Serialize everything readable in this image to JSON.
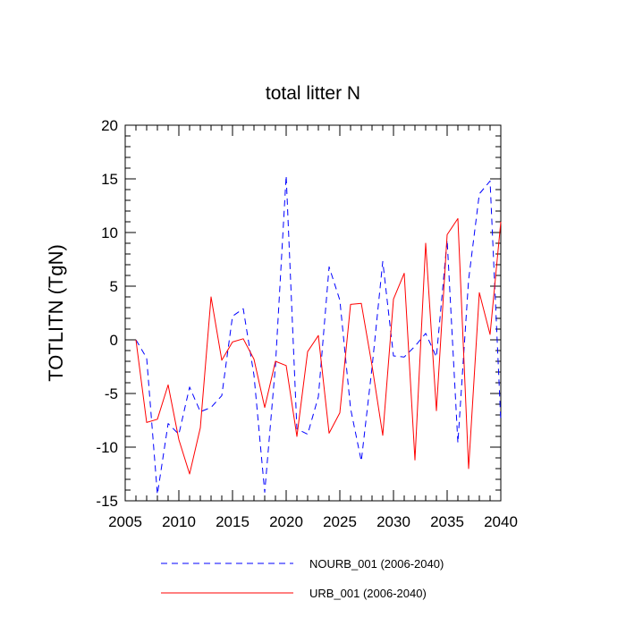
{
  "chart_data": {
    "type": "line",
    "title": "total litter N",
    "xlabel": "",
    "ylabel": "TOTLITN  (TgN)",
    "xlim": [
      2005,
      2040
    ],
    "ylim": [
      -15,
      20
    ],
    "x_ticks": [
      2005,
      2010,
      2015,
      2020,
      2025,
      2030,
      2035,
      2040
    ],
    "x_tick_labels": [
      "2005",
      "2010",
      "2015",
      "2020",
      "2025",
      "2030",
      "2035",
      "2040"
    ],
    "y_ticks": [
      -15,
      -10,
      -5,
      0,
      5,
      10,
      15,
      20
    ],
    "y_tick_labels": [
      "-15",
      "-10",
      "-5",
      "0",
      "5",
      "10",
      "15",
      "20"
    ],
    "legend_position": "bottom",
    "x": [
      2006,
      2007,
      2008,
      2009,
      2010,
      2011,
      2012,
      2013,
      2014,
      2015,
      2016,
      2017,
      2018,
      2019,
      2020,
      2021,
      2022,
      2023,
      2024,
      2025,
      2026,
      2027,
      2028,
      2029,
      2030,
      2031,
      2032,
      2033,
      2034,
      2035,
      2036,
      2037,
      2038,
      2039,
      2040
    ],
    "series": [
      {
        "name": "NOURB_001 (2006-2040)",
        "color": "#0000ff",
        "dash": "dashed",
        "values": [
          0.0,
          -1.7,
          -14.4,
          -7.8,
          -8.8,
          -4.4,
          -6.7,
          -6.3,
          -5.2,
          2.2,
          2.9,
          -3.3,
          -14.2,
          -2.4,
          15.3,
          -8.3,
          -8.8,
          -5.3,
          6.8,
          3.7,
          -6.4,
          -11.3,
          -2.6,
          7.3,
          -1.5,
          -1.6,
          -0.6,
          0.6,
          -1.6,
          9.3,
          -9.6,
          5.6,
          13.6,
          14.8,
          -7.6
        ]
      },
      {
        "name": "URB_001 (2006-2040)",
        "color": "#ff0000",
        "dash": "solid",
        "values": [
          0.0,
          -7.7,
          -7.4,
          -4.2,
          -9.3,
          -12.5,
          -8.2,
          4.0,
          -1.9,
          -0.2,
          0.1,
          -1.8,
          -6.3,
          -2.0,
          -2.4,
          -9.0,
          -1.1,
          0.4,
          -8.7,
          -6.8,
          3.3,
          3.4,
          -2.4,
          -8.9,
          3.8,
          6.2,
          -11.2,
          9.0,
          -6.6,
          9.8,
          11.3,
          -12.0,
          4.4,
          0.5,
          11.0
        ]
      }
    ]
  }
}
